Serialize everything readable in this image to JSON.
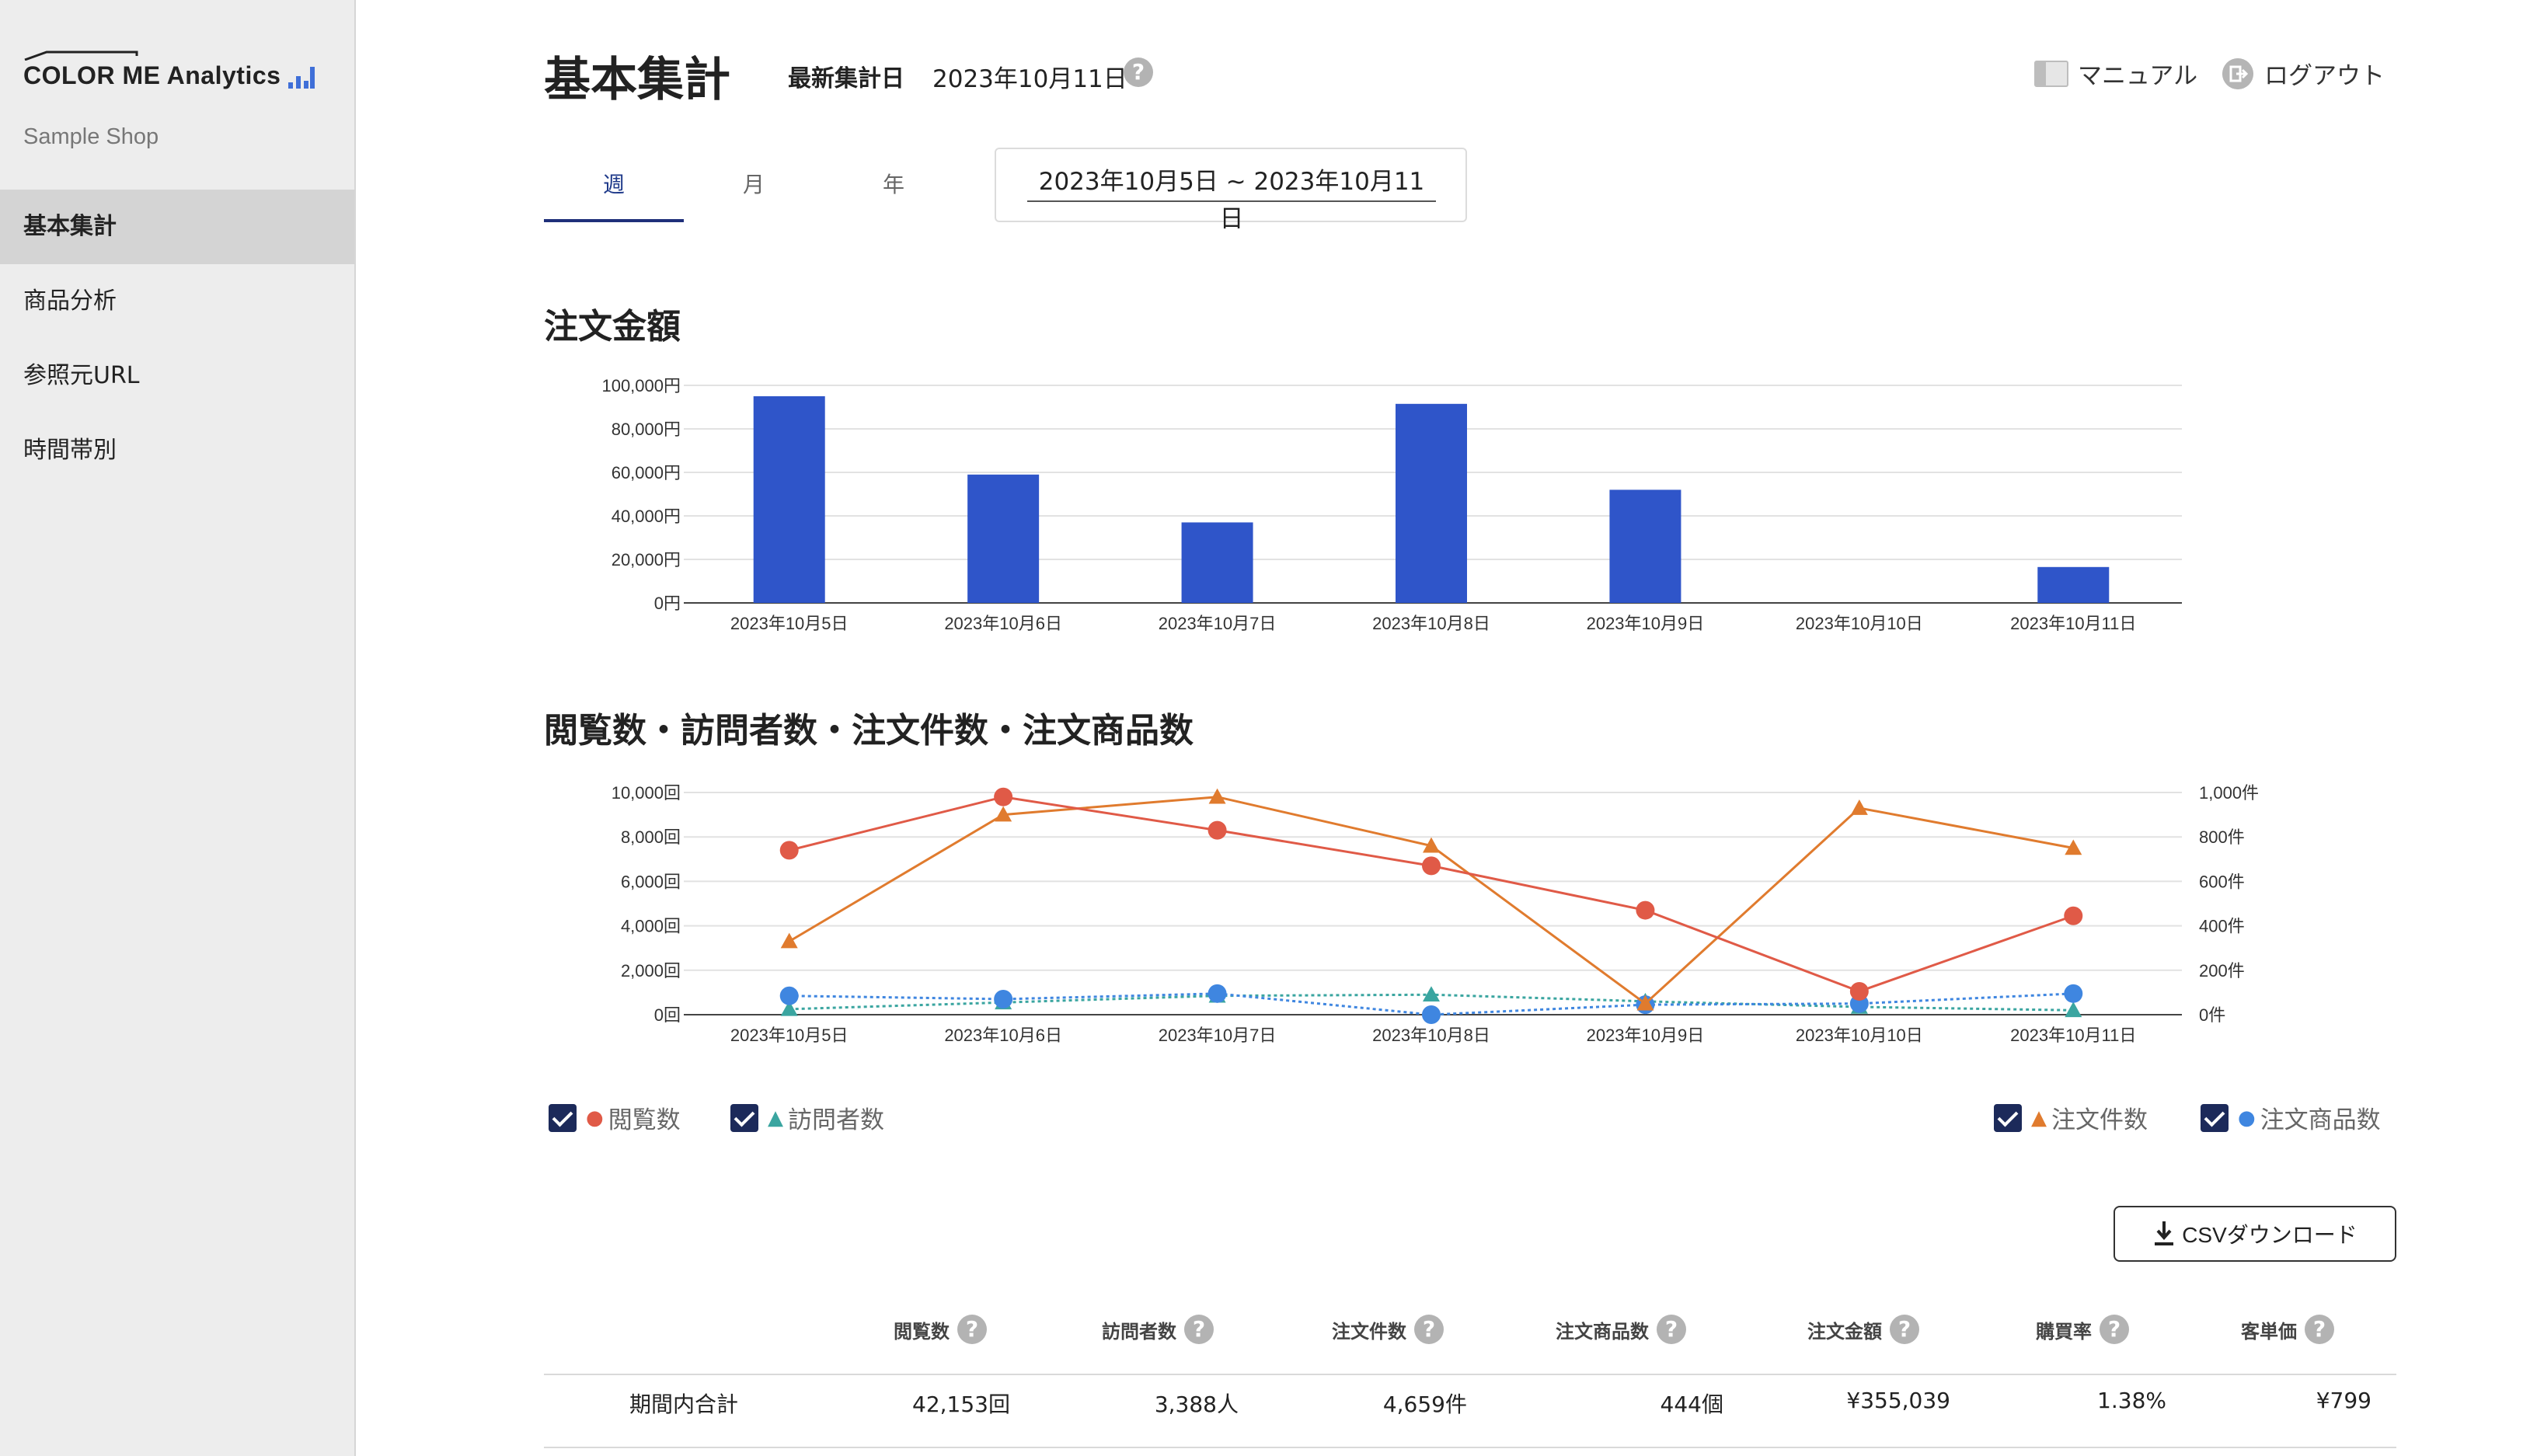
{
  "sidebar": {
    "logo_text": "COLOR ME Analytics",
    "shop_name": "Sample Shop",
    "items": [
      {
        "label": "基本集計",
        "active": true
      },
      {
        "label": "商品分析",
        "active": false
      },
      {
        "label": "参照元URL",
        "active": false
      },
      {
        "label": "時間帯別",
        "active": false
      }
    ]
  },
  "header": {
    "title": "基本集計",
    "latest_label": "最新集計日",
    "latest_date": "2023年10月11日",
    "manual": "マニュアル",
    "logout": "ログアウト"
  },
  "tabs": [
    {
      "label": "週",
      "active": true
    },
    {
      "label": "月",
      "active": false
    },
    {
      "label": "年",
      "active": false
    }
  ],
  "date_range": "2023年10月5日 ~ 2023年10月11日",
  "sections": {
    "amount_title": "注文金額",
    "multi_title": "閲覧数・訪問者数・注文件数・注文商品数"
  },
  "chart_data": [
    {
      "type": "bar",
      "title": "注文金額",
      "categories": [
        "2023年10月5日",
        "2023年10月6日",
        "2023年10月7日",
        "2023年10月8日",
        "2023年10月9日",
        "2023年10月10日",
        "2023年10月11日"
      ],
      "values": [
        95000,
        59000,
        37000,
        91500,
        52000,
        0,
        16500
      ],
      "ylim": [
        0,
        100000
      ],
      "yticks": [
        "0円",
        "20,000円",
        "40,000円",
        "60,000円",
        "80,000円",
        "100,000円"
      ],
      "color": "#2f55c9",
      "grid": true
    },
    {
      "type": "line",
      "title": "閲覧数・訪問者数・注文件数・注文商品数",
      "categories": [
        "2023年10月5日",
        "2023年10月6日",
        "2023年10月7日",
        "2023年10月8日",
        "2023年10月9日",
        "2023年10月10日",
        "2023年10月11日"
      ],
      "y_left": {
        "ylim": [
          0,
          10000
        ],
        "ticks": [
          "0回",
          "2,000回",
          "4,000回",
          "6,000回",
          "8,000回",
          "10,000回"
        ]
      },
      "y_right": {
        "ylim": [
          0,
          1000
        ],
        "ticks": [
          "0件",
          "200件",
          "400件",
          "600件",
          "800件",
          "1,000件"
        ]
      },
      "series": [
        {
          "name": "閲覧数",
          "axis": "left",
          "marker": "circle",
          "color": "#e05a47",
          "style": "solid",
          "values": [
            7400,
            9800,
            8300,
            6700,
            4700,
            1050,
            4450
          ]
        },
        {
          "name": "訪問者数",
          "axis": "left",
          "marker": "triangle",
          "color": "#3aa5a0",
          "style": "dotted",
          "values": [
            250,
            550,
            850,
            900,
            600,
            350,
            200
          ]
        },
        {
          "name": "注文件数",
          "axis": "right",
          "marker": "triangle",
          "color": "#e07b2e",
          "style": "solid",
          "values": [
            330,
            900,
            980,
            760,
            50,
            930,
            750
          ]
        },
        {
          "name": "注文商品数",
          "axis": "right",
          "marker": "circle",
          "color": "#3f86e0",
          "style": "dotted",
          "values": [
            85,
            70,
            95,
            0,
            45,
            50,
            95
          ]
        }
      ],
      "grid": true
    }
  ],
  "legend": [
    {
      "label": "閲覧数",
      "marker": "●",
      "color": "#e05a47"
    },
    {
      "label": "訪問者数",
      "marker": "▲",
      "color": "#3aa5a0"
    },
    {
      "label": "注文件数",
      "marker": "▲",
      "color": "#e07b2e"
    },
    {
      "label": "注文商品数",
      "marker": "●",
      "color": "#3f86e0"
    }
  ],
  "csv_label": "CSVダウンロード",
  "table": {
    "headers": [
      "閲覧数",
      "訪問者数",
      "注文件数",
      "注文商品数",
      "注文金額",
      "購買率",
      "客単価"
    ],
    "row_label": "期間内合計",
    "values": [
      "42,153回",
      "3,388人",
      "4,659件",
      "444個",
      "¥355,039",
      "1.38%",
      "¥799"
    ]
  }
}
